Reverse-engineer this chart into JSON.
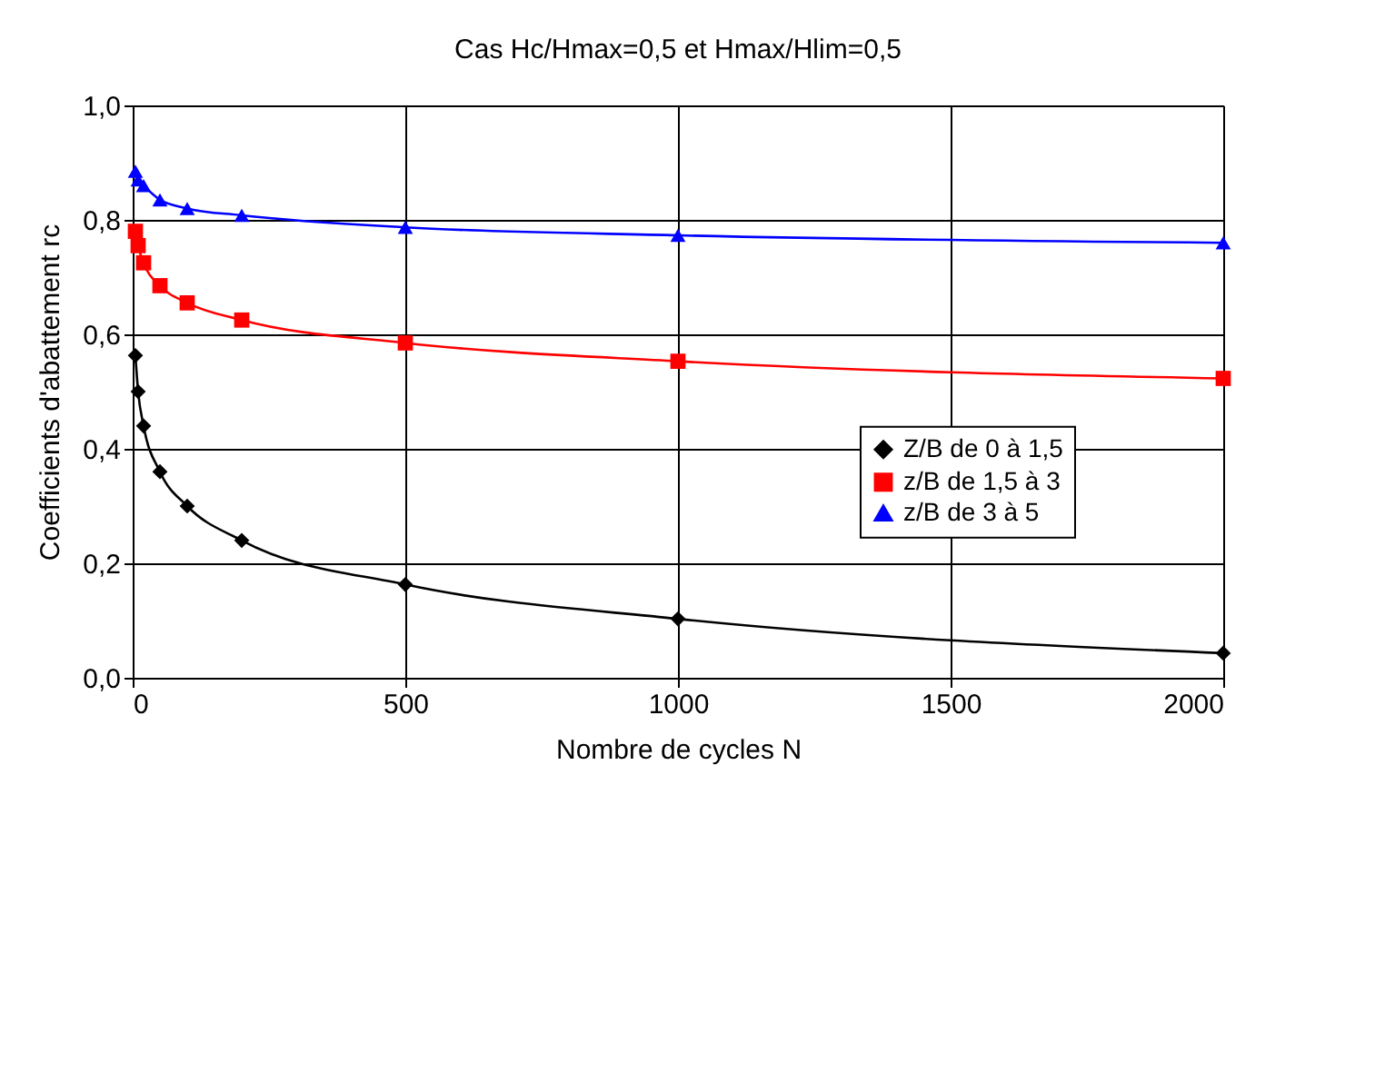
{
  "chart_data": {
    "type": "line",
    "title": "Cas Hc/Hmax=0,5 et Hmax/Hlim=0,5",
    "xlabel": "Nombre de cycles N",
    "ylabel": "Coefficients d'abattement rc",
    "x": [
      5,
      10,
      20,
      50,
      100,
      200,
      500,
      1000,
      2000
    ],
    "series": [
      {
        "name": "Z/B de 0 à 1,5",
        "color": "#000000",
        "marker": "diamond",
        "values": [
          0.563,
          0.5,
          0.44,
          0.36,
          0.3,
          0.24,
          0.163,
          0.103,
          0.043
        ]
      },
      {
        "name": "z/B de 1,5 à 3",
        "color": "#ff0000",
        "marker": "square",
        "values": [
          0.78,
          0.755,
          0.725,
          0.685,
          0.655,
          0.625,
          0.585,
          0.553,
          0.523
        ]
      },
      {
        "name": "z/B de 3 à 5",
        "color": "#0000ff",
        "marker": "triangle",
        "values": [
          0.885,
          0.87,
          0.86,
          0.835,
          0.82,
          0.808,
          0.787,
          0.773,
          0.76
        ]
      }
    ],
    "xlim": [
      0,
      2000
    ],
    "xticks": [
      0,
      500,
      1000,
      1500,
      2000
    ],
    "ylim": [
      0,
      1
    ],
    "yticks": [
      {
        "value": 0,
        "label": "0,0"
      },
      {
        "value": 0.2,
        "label": "0,2"
      },
      {
        "value": 0.4,
        "label": "0,4"
      },
      {
        "value": 0.6,
        "label": "0,6"
      },
      {
        "value": 0.8,
        "label": "0,8"
      },
      {
        "value": 1,
        "label": "1,0"
      }
    ],
    "grid": true,
    "legend": "right",
    "line_style": "solid"
  }
}
